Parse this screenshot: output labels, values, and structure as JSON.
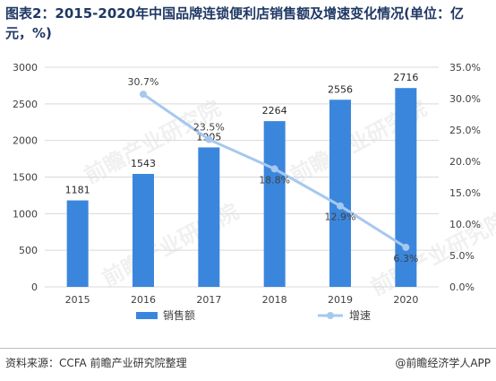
{
  "title": "图表2：2015-2020年中国品牌连锁便利店销售额及增速变化情况(单位：亿元，%)",
  "footer": {
    "source": "资料来源：CCFA 前瞻产业研究院整理",
    "credit": "@前瞻经济学人APP"
  },
  "watermark": "前瞻产业研究院",
  "colors": {
    "bar": "#3b86dd",
    "line": "#a6c8ef",
    "grid": "#d9d9d9",
    "title": "#1f3864"
  },
  "chart_data": {
    "type": "bar",
    "categories": [
      "2015",
      "2016",
      "2017",
      "2018",
      "2019",
      "2020"
    ],
    "series": [
      {
        "name": "销售额",
        "type": "bar",
        "axis": "left",
        "values": [
          1181,
          1543,
          1905,
          2264,
          2556,
          2716
        ]
      },
      {
        "name": "增速",
        "type": "line",
        "axis": "right",
        "values": [
          null,
          30.7,
          23.5,
          18.8,
          12.9,
          6.3
        ]
      }
    ],
    "data_labels": {
      "bar": [
        "1181",
        "1543",
        "1905",
        "2264",
        "2556",
        "2716"
      ],
      "line": [
        "",
        "30.7%",
        "23.5%",
        "18.8%",
        "12.9%",
        "6.3%"
      ]
    },
    "ylim_left": [
      0,
      3000
    ],
    "yticks_left": [
      "0",
      "500",
      "1000",
      "1500",
      "2000",
      "2500",
      "3000"
    ],
    "ylim_right": [
      0,
      35
    ],
    "yticks_right": [
      "0.0%",
      "5.0%",
      "10.0%",
      "15.0%",
      "20.0%",
      "25.0%",
      "30.0%",
      "35.0%"
    ],
    "grid": true,
    "legend_position": "bottom"
  }
}
